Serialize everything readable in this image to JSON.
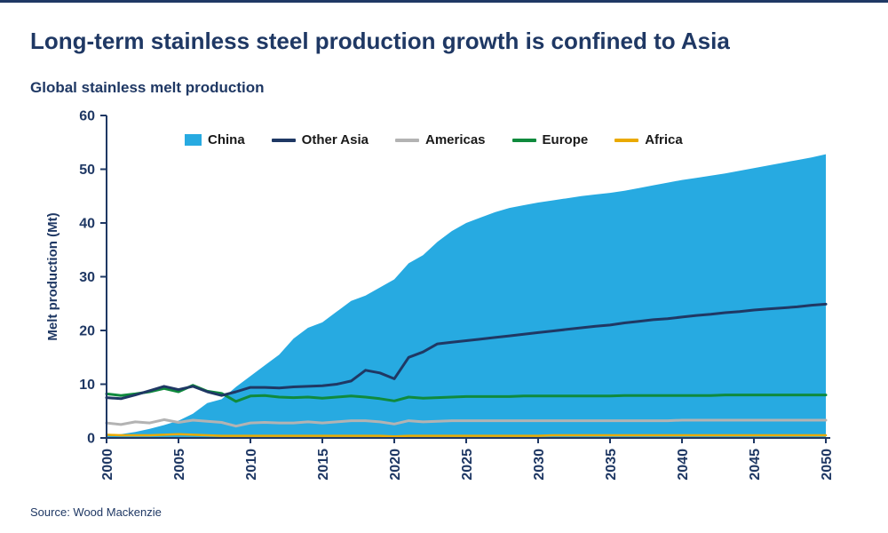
{
  "page": {
    "title": "Long-term stainless steel production growth is confined to Asia",
    "subtitle": "Global stainless melt production",
    "source": "Source: Wood Mackenzie"
  },
  "colors": {
    "navy": "#1F3864",
    "accent_cyan": "#27AAE1",
    "legend_text": "#1A1A1A",
    "background": "#FFFFFF"
  },
  "chart_data": {
    "type": "area+line",
    "title": "Global stainless melt production",
    "xlabel": "",
    "ylabel": "Melt production (Mt)",
    "x_start": 2000,
    "x_end": 2050,
    "x_ticks": [
      2000,
      2005,
      2010,
      2015,
      2020,
      2025,
      2030,
      2035,
      2040,
      2045,
      2050
    ],
    "ylim": [
      0,
      60
    ],
    "y_ticks": [
      0,
      10,
      20,
      30,
      40,
      50,
      60
    ],
    "grid": false,
    "legend_position": "top-inside",
    "series": [
      {
        "name": "China",
        "marker": "area",
        "color": "#27AAE1",
        "z": 1,
        "width": 0,
        "values": [
          0.5,
          0.7,
          1.1,
          1.7,
          2.4,
          3.2,
          4.5,
          6.5,
          7.2,
          9.5,
          11.5,
          13.5,
          15.5,
          18.5,
          20.5,
          21.5,
          23.5,
          25.5,
          26.5,
          28,
          29.5,
          32.5,
          34,
          36.5,
          38.5,
          40,
          41,
          42,
          42.8,
          43.3,
          43.8,
          44.2,
          44.6,
          45,
          45.3,
          45.6,
          46,
          46.5,
          47,
          47.5,
          48,
          48.4,
          48.8,
          49.2,
          49.7,
          50.2,
          50.7,
          51.2,
          51.7,
          52.2,
          52.8
        ]
      },
      {
        "name": "Other Asia",
        "marker": "line",
        "color": "#1F3864",
        "z": 5,
        "width": 3,
        "values": [
          7.5,
          7.3,
          8.0,
          8.8,
          9.6,
          9.0,
          9.6,
          8.6,
          7.9,
          8.6,
          9.4,
          9.4,
          9.3,
          9.5,
          9.6,
          9.7,
          10.0,
          10.6,
          12.6,
          12.1,
          11.0,
          15.0,
          16.0,
          17.5,
          17.8,
          18.1,
          18.4,
          18.7,
          19.0,
          19.3,
          19.6,
          19.9,
          20.2,
          20.5,
          20.8,
          21.0,
          21.4,
          21.7,
          22.0,
          22.2,
          22.5,
          22.8,
          23.0,
          23.3,
          23.5,
          23.8,
          24.0,
          24.2,
          24.4,
          24.7,
          24.9
        ]
      },
      {
        "name": "Americas",
        "marker": "line",
        "color": "#B3B3B3",
        "z": 2,
        "width": 3,
        "values": [
          2.8,
          2.5,
          3.0,
          2.8,
          3.4,
          2.9,
          3.3,
          3.1,
          2.9,
          2.2,
          2.8,
          2.9,
          2.8,
          2.8,
          3.0,
          2.8,
          3.0,
          3.2,
          3.2,
          3.0,
          2.6,
          3.2,
          3.0,
          3.1,
          3.2,
          3.2,
          3.2,
          3.2,
          3.2,
          3.2,
          3.2,
          3.2,
          3.2,
          3.2,
          3.2,
          3.2,
          3.2,
          3.2,
          3.2,
          3.2,
          3.3,
          3.3,
          3.3,
          3.3,
          3.3,
          3.3,
          3.3,
          3.3,
          3.3,
          3.3,
          3.3
        ]
      },
      {
        "name": "Europe",
        "marker": "line",
        "color": "#0F8A3D",
        "z": 4,
        "width": 3,
        "values": [
          8.2,
          7.9,
          8.2,
          8.6,
          9.2,
          8.6,
          9.8,
          8.7,
          8.3,
          6.8,
          7.8,
          7.9,
          7.6,
          7.5,
          7.6,
          7.4,
          7.6,
          7.8,
          7.6,
          7.3,
          6.9,
          7.6,
          7.4,
          7.5,
          7.6,
          7.7,
          7.7,
          7.7,
          7.7,
          7.8,
          7.8,
          7.8,
          7.8,
          7.8,
          7.8,
          7.8,
          7.9,
          7.9,
          7.9,
          7.9,
          7.9,
          7.9,
          7.9,
          8.0,
          8.0,
          8.0,
          8.0,
          8.0,
          8.0,
          8.0,
          8.0
        ]
      },
      {
        "name": "Africa",
        "marker": "line",
        "color": "#EAAA00",
        "z": 3,
        "width": 2.5,
        "values": [
          0.6,
          0.5,
          0.5,
          0.5,
          0.6,
          0.7,
          0.6,
          0.5,
          0.4,
          0.4,
          0.4,
          0.4,
          0.4,
          0.4,
          0.4,
          0.4,
          0.4,
          0.4,
          0.4,
          0.4,
          0.3,
          0.4,
          0.4,
          0.4,
          0.4,
          0.4,
          0.4,
          0.4,
          0.4,
          0.4,
          0.4,
          0.5,
          0.5,
          0.5,
          0.5,
          0.5,
          0.5,
          0.5,
          0.5,
          0.5,
          0.5,
          0.5,
          0.5,
          0.5,
          0.5,
          0.5,
          0.5,
          0.5,
          0.5,
          0.5,
          0.5
        ]
      }
    ]
  }
}
